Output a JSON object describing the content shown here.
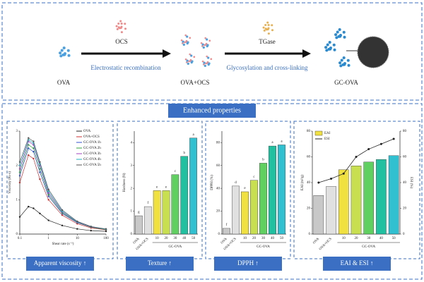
{
  "header": {
    "reagent1": "OCS",
    "step1": "Electrostatic recombination",
    "reagent2": "TGase",
    "step2": "Glycosylation and cross-linking",
    "products": [
      "OVA",
      "OVA+OCS",
      "GC-OVA"
    ]
  },
  "section_title": "Enhanced properties",
  "chart_data": [
    {
      "type": "line",
      "caption": "Apparent viscosity ↑",
      "xlabel": "Shear rate (s⁻¹)",
      "ylabel": "Viscosity (Pa·s)",
      "x": [
        0.1,
        0.2,
        0.3,
        0.5,
        1,
        3,
        10,
        30,
        100
      ],
      "log_x": true,
      "xlim": [
        0.1,
        100
      ],
      "xticks": [
        0.1,
        1,
        10,
        100
      ],
      "ylim": [
        0,
        3
      ],
      "yticks": [
        0,
        1,
        2,
        3
      ],
      "series": [
        {
          "name": "OVA",
          "color": "#222222",
          "values": [
            0.5,
            0.8,
            0.75,
            0.6,
            0.4,
            0.25,
            0.15,
            0.1,
            0.08
          ]
        },
        {
          "name": "OVA+OCS",
          "color": "#d03030",
          "values": [
            1.5,
            2.3,
            2.2,
            1.6,
            1.0,
            0.55,
            0.3,
            0.18,
            0.12
          ]
        },
        {
          "name": "GC-OVA 1h",
          "color": "#3050d0",
          "values": [
            1.7,
            2.5,
            2.4,
            1.8,
            1.1,
            0.6,
            0.33,
            0.2,
            0.13
          ]
        },
        {
          "name": "GC-OVA 2h",
          "color": "#30a040",
          "values": [
            1.8,
            2.6,
            2.5,
            1.9,
            1.15,
            0.62,
            0.34,
            0.2,
            0.13
          ]
        },
        {
          "name": "GC-OVA 3h",
          "color": "#a040c0",
          "values": [
            1.9,
            2.7,
            2.6,
            2.0,
            1.2,
            0.65,
            0.35,
            0.21,
            0.14
          ]
        },
        {
          "name": "GC-OVA 4h",
          "color": "#20b0c0",
          "values": [
            2.0,
            2.75,
            2.65,
            2.05,
            1.25,
            0.67,
            0.36,
            0.22,
            0.14
          ]
        },
        {
          "name": "GC-OVA 5h",
          "color": "#555555",
          "values": [
            2.1,
            2.8,
            2.7,
            2.1,
            1.3,
            0.7,
            0.37,
            0.22,
            0.15
          ]
        }
      ]
    },
    {
      "type": "bar",
      "caption": "Texture ↑",
      "ylabel": "Hardness (N)",
      "group_label": "GC-OVA",
      "categories": [
        "OVA",
        "OVA+OCS",
        "10",
        "20",
        "30",
        "40",
        "50"
      ],
      "values": [
        0.8,
        1.2,
        1.9,
        1.9,
        2.6,
        3.4,
        4.2
      ],
      "letters": [
        "g",
        "f",
        "e",
        "e",
        "c",
        "b",
        "a"
      ],
      "colors": [
        "#c8c8c8",
        "#e0e0e0",
        "#f0e040",
        "#c8e050",
        "#60d060",
        "#20c0a0",
        "#30c0d0"
      ],
      "ylim": [
        0,
        4.5
      ],
      "yticks": [
        0,
        1,
        2,
        3,
        4
      ]
    },
    {
      "type": "bar",
      "caption": "DPPH ↑",
      "ylabel": "DPPH (%)",
      "group_label": "GC-OVA",
      "categories": [
        "OVA",
        "OVA+OCS",
        "10",
        "20",
        "30",
        "40",
        "50"
      ],
      "values": [
        5,
        42,
        37,
        47,
        62,
        77,
        78
      ],
      "letters": [
        "f",
        "d",
        "e",
        "c",
        "b",
        "a",
        "a"
      ],
      "colors": [
        "#c8c8c8",
        "#e0e0e0",
        "#f0e040",
        "#c8e050",
        "#60d060",
        "#20c0a0",
        "#30c0d0"
      ],
      "ylim": [
        0,
        90
      ],
      "yticks": [
        0,
        20,
        40,
        60,
        80
      ]
    },
    {
      "type": "bar_line",
      "caption": "EAI & ESI ↑",
      "ylabel": "EAI (m²/g)",
      "y2label": "ESI (%)",
      "group_label": "GC-OVA",
      "categories": [
        "OVA",
        "OVA+OCS",
        "10",
        "20",
        "30",
        "40",
        "50"
      ],
      "colors": [
        "#c8c8c8",
        "#e0e0e0",
        "#f0e040",
        "#c8e050",
        "#60d060",
        "#20c0a0",
        "#30c0d0"
      ],
      "ylim": [
        0,
        80
      ],
      "yticks": [
        0,
        20,
        40,
        60,
        80
      ],
      "y2lim": [
        0,
        80
      ],
      "y2ticks": [
        0,
        20,
        40,
        60,
        80
      ],
      "series": [
        {
          "name": "EAI",
          "color": "#f0e040",
          "values": [
            30,
            37,
            50,
            53,
            56,
            58,
            61
          ]
        },
        {
          "name": "ESI",
          "color": "#222222",
          "axis": "y2",
          "values": [
            40,
            43,
            47,
            60,
            66,
            70,
            74
          ]
        }
      ]
    }
  ]
}
